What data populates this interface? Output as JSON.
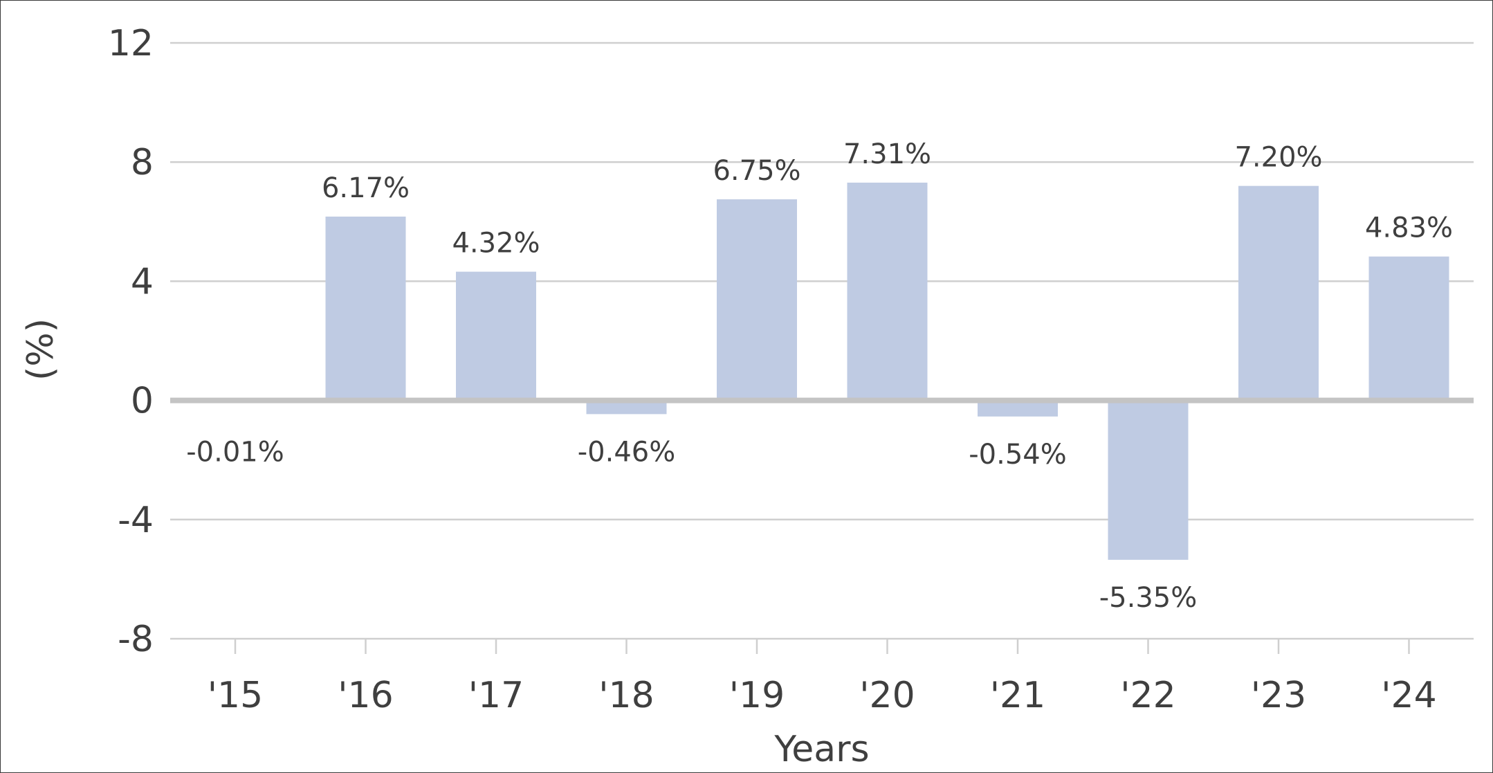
{
  "chart_data": {
    "type": "bar",
    "categories": [
      "'15",
      "'16",
      "'17",
      "'18",
      "'19",
      "'20",
      "'21",
      "'22",
      "'23",
      "'24"
    ],
    "values": [
      -0.01,
      6.17,
      4.32,
      -0.46,
      6.75,
      7.31,
      -0.54,
      -5.35,
      7.2,
      4.83
    ],
    "data_labels": [
      "-0.01%",
      "6.17%",
      "4.32%",
      "-0.46%",
      "6.75%",
      "7.31%",
      "-0.54%",
      "-5.35%",
      "7.20%",
      "4.83%"
    ],
    "xlabel": "Years",
    "ylabel": "(%)",
    "ylim": [
      -8,
      12
    ],
    "yticks": [
      12,
      8,
      4,
      0,
      -4,
      -8
    ],
    "grid": true,
    "legend": "none",
    "bar_color": "#bfcbe3"
  }
}
